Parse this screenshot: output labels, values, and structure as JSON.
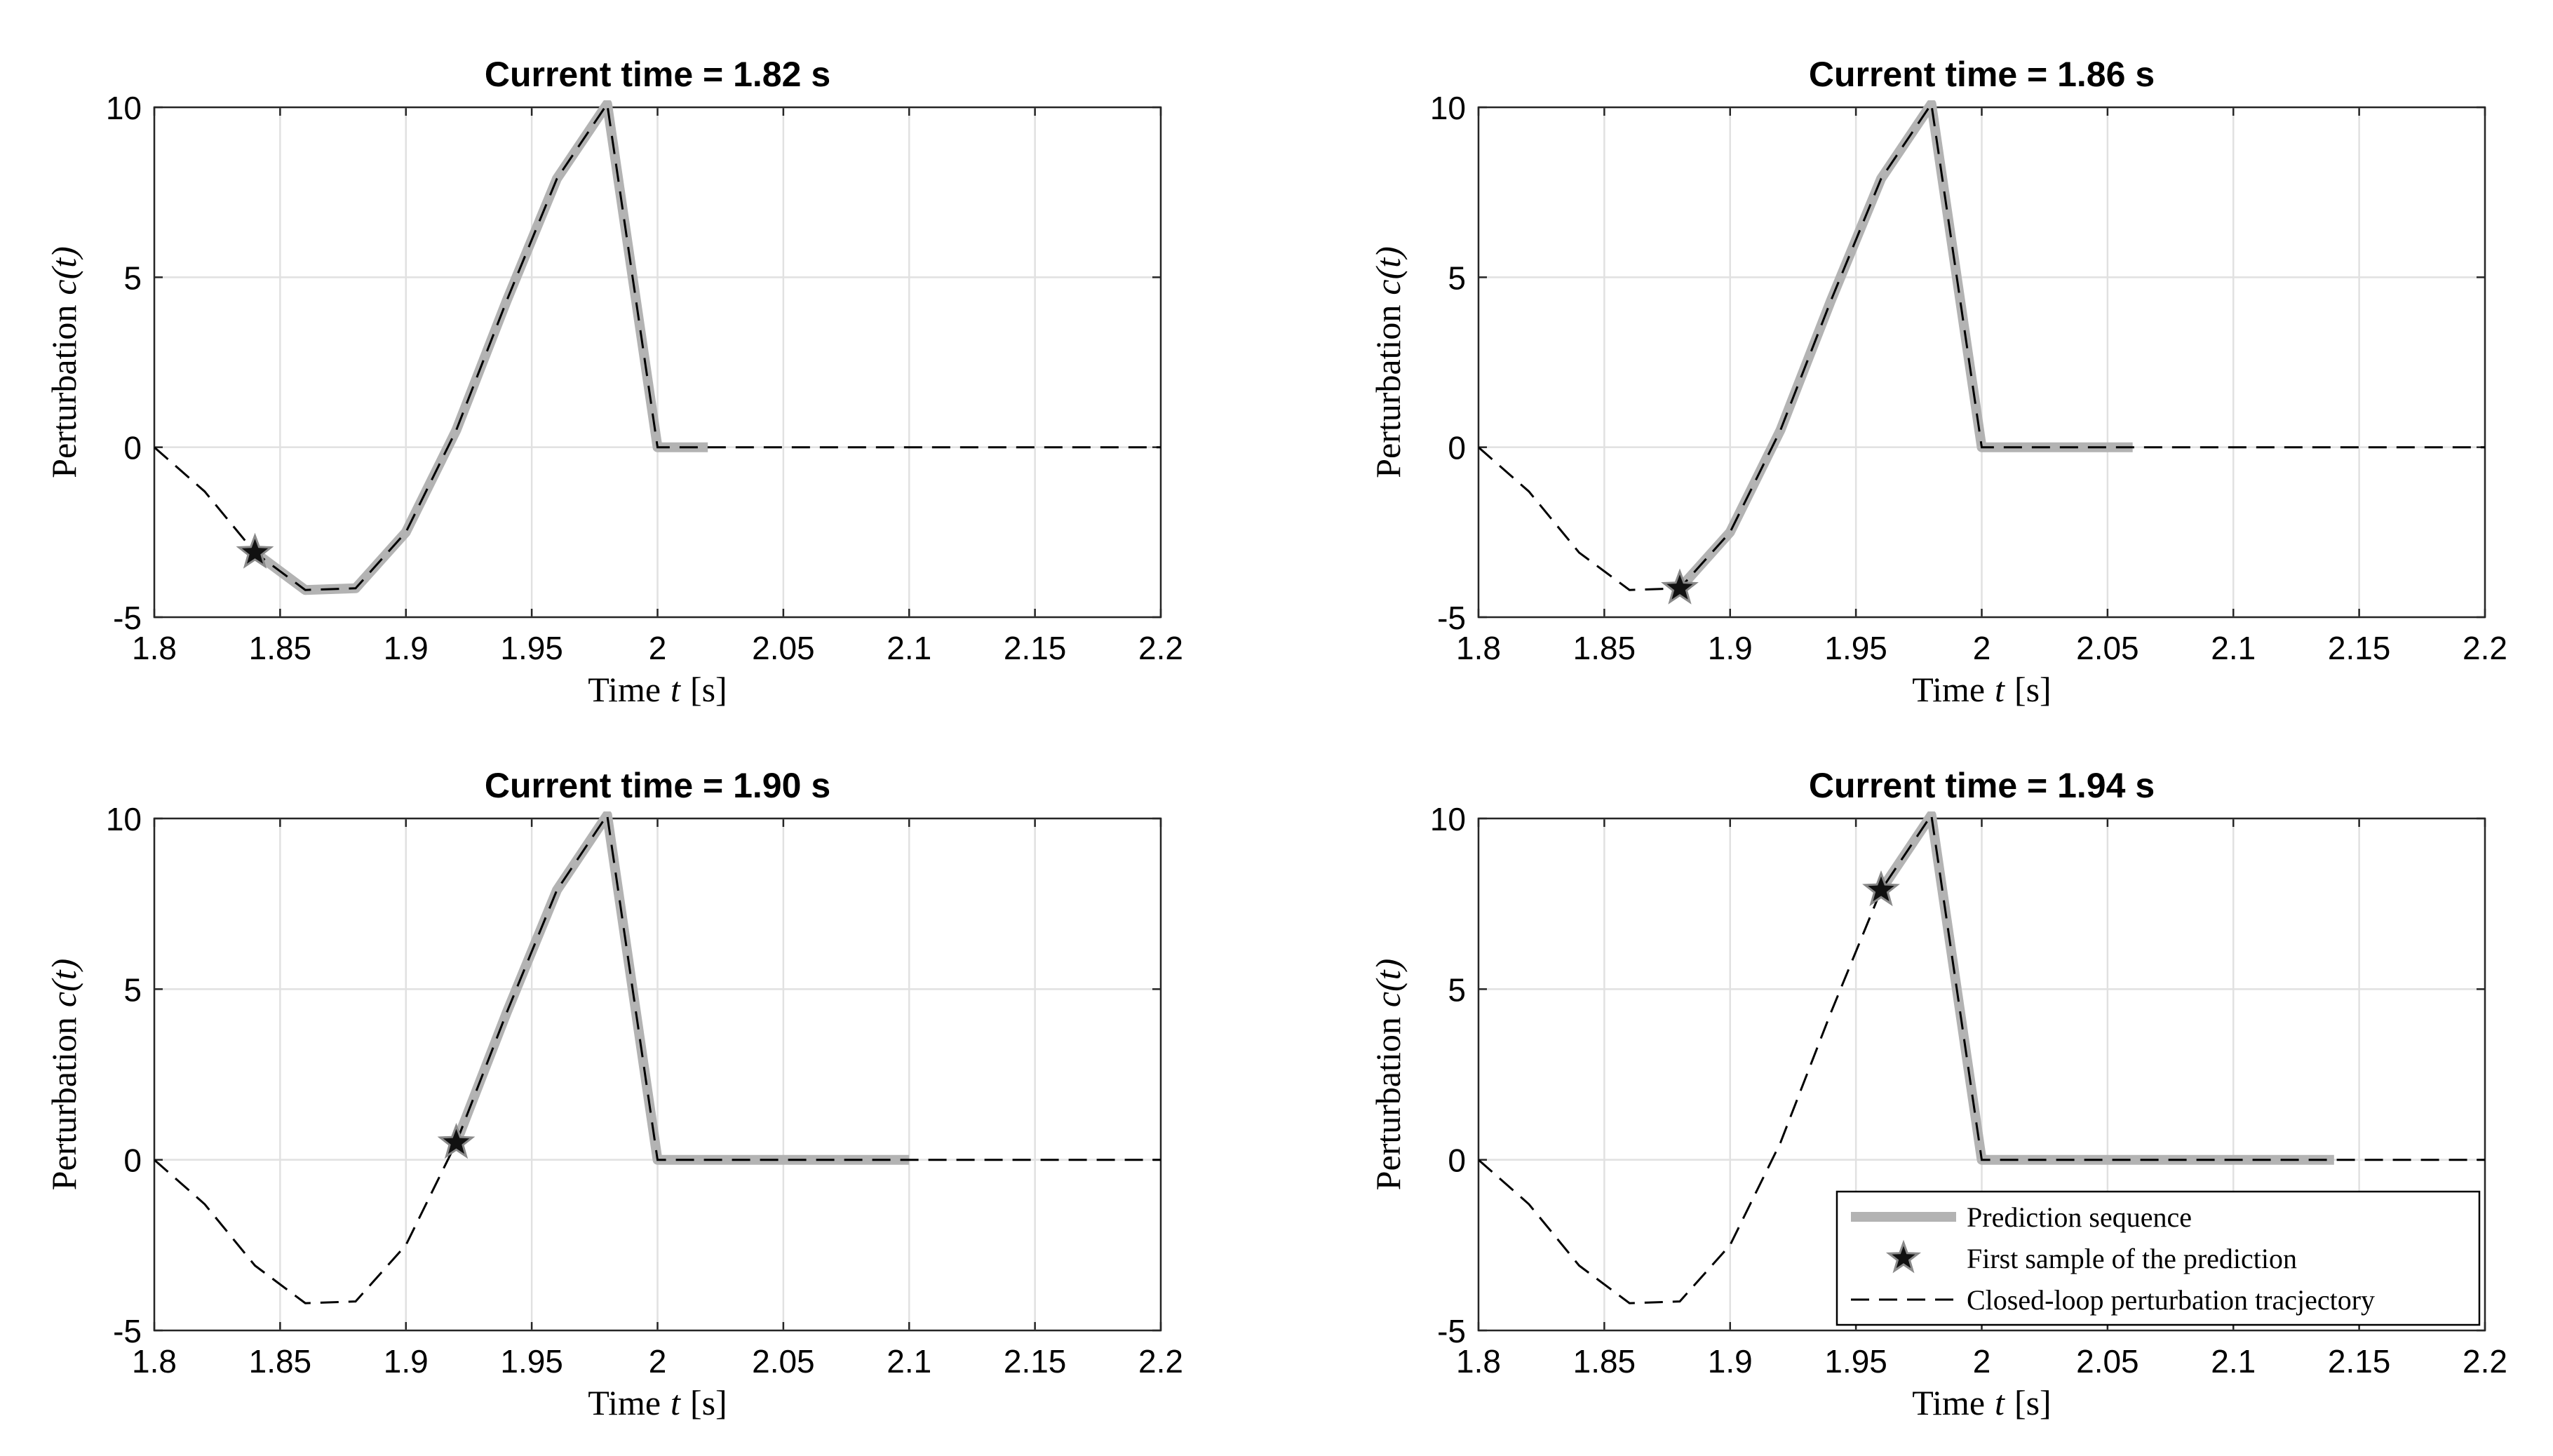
{
  "chart_data": [
    {
      "type": "line",
      "title": "Current time = 1.82 s",
      "xlabel": "Time",
      "xlabel_var": "t",
      "xlabel_unit": "[s]",
      "ylabel": "Perturbation",
      "ylabel_var": "c(t)",
      "xlim": [
        1.8,
        2.2
      ],
      "ylim": [
        -5,
        10
      ],
      "xticks": [
        "1.8",
        "1.85",
        "1.9",
        "1.95",
        "2",
        "2.05",
        "2.1",
        "2.15",
        "2.2"
      ],
      "yticks": [
        "-5",
        "0",
        "5",
        "10"
      ],
      "grid": true,
      "series": [
        {
          "name": "Prediction sequence",
          "x": [
            1.84,
            1.86,
            1.88,
            1.9,
            1.92,
            1.94,
            1.96,
            1.98,
            2.0,
            2.02
          ],
          "y": [
            -3.1,
            -4.2,
            -4.15,
            -2.5,
            0.5,
            4.3,
            7.9,
            10.1,
            0.0,
            0.0
          ]
        },
        {
          "name": "First sample of the prediction",
          "x": [
            1.84
          ],
          "y": [
            -3.1
          ]
        },
        {
          "name": "Closed-loop perturbation tracjectory",
          "x": [
            1.8,
            1.82,
            1.84,
            1.86,
            1.88,
            1.9,
            1.92,
            1.94,
            1.96,
            1.98,
            2.0,
            2.2
          ],
          "y": [
            0.0,
            -1.3,
            -3.1,
            -4.2,
            -4.15,
            -2.5,
            0.5,
            4.3,
            7.9,
            10.1,
            0.0,
            0.0
          ]
        }
      ]
    },
    {
      "type": "line",
      "title": "Current time = 1.86 s",
      "xlabel": "Time",
      "xlabel_var": "t",
      "xlabel_unit": "[s]",
      "ylabel": "Perturbation",
      "ylabel_var": "c(t)",
      "xlim": [
        1.8,
        2.2
      ],
      "ylim": [
        -5,
        10
      ],
      "xticks": [
        "1.8",
        "1.85",
        "1.9",
        "1.95",
        "2",
        "2.05",
        "2.1",
        "2.15",
        "2.2"
      ],
      "yticks": [
        "-5",
        "0",
        "5",
        "10"
      ],
      "grid": true,
      "series": [
        {
          "name": "Prediction sequence",
          "x": [
            1.88,
            1.9,
            1.92,
            1.94,
            1.96,
            1.98,
            2.0,
            2.02,
            2.04,
            2.06
          ],
          "y": [
            -4.15,
            -2.5,
            0.5,
            4.3,
            7.9,
            10.1,
            0.0,
            0.0,
            0.0,
            0.0
          ]
        },
        {
          "name": "First sample of the prediction",
          "x": [
            1.88
          ],
          "y": [
            -4.15
          ]
        },
        {
          "name": "Closed-loop perturbation tracjectory",
          "x": [
            1.8,
            1.82,
            1.84,
            1.86,
            1.88,
            1.9,
            1.92,
            1.94,
            1.96,
            1.98,
            2.0,
            2.2
          ],
          "y": [
            0.0,
            -1.3,
            -3.1,
            -4.2,
            -4.15,
            -2.5,
            0.5,
            4.3,
            7.9,
            10.1,
            0.0,
            0.0
          ]
        }
      ]
    },
    {
      "type": "line",
      "title": "Current time = 1.90 s",
      "xlabel": "Time",
      "xlabel_var": "t",
      "xlabel_unit": "[s]",
      "ylabel": "Perturbation",
      "ylabel_var": "c(t)",
      "xlim": [
        1.8,
        2.2
      ],
      "ylim": [
        -5,
        10
      ],
      "xticks": [
        "1.8",
        "1.85",
        "1.9",
        "1.95",
        "2",
        "2.05",
        "2.1",
        "2.15",
        "2.2"
      ],
      "yticks": [
        "-5",
        "0",
        "5",
        "10"
      ],
      "grid": true,
      "series": [
        {
          "name": "Prediction sequence",
          "x": [
            1.92,
            1.94,
            1.96,
            1.98,
            2.0,
            2.02,
            2.04,
            2.06,
            2.08,
            2.1
          ],
          "y": [
            0.5,
            4.3,
            7.9,
            10.1,
            0.0,
            0.0,
            0.0,
            0.0,
            0.0,
            0.0
          ]
        },
        {
          "name": "First sample of the prediction",
          "x": [
            1.92
          ],
          "y": [
            0.5
          ]
        },
        {
          "name": "Closed-loop perturbation tracjectory",
          "x": [
            1.8,
            1.82,
            1.84,
            1.86,
            1.88,
            1.9,
            1.92,
            1.94,
            1.96,
            1.98,
            2.0,
            2.2
          ],
          "y": [
            0.0,
            -1.3,
            -3.1,
            -4.2,
            -4.15,
            -2.5,
            0.5,
            4.3,
            7.9,
            10.1,
            0.0,
            0.0
          ]
        }
      ]
    },
    {
      "type": "line",
      "title": "Current time = 1.94 s",
      "xlabel": "Time",
      "xlabel_var": "t",
      "xlabel_unit": "[s]",
      "ylabel": "Perturbation",
      "ylabel_var": "c(t)",
      "xlim": [
        1.8,
        2.2
      ],
      "ylim": [
        -5,
        10
      ],
      "xticks": [
        "1.8",
        "1.85",
        "1.9",
        "1.95",
        "2",
        "2.05",
        "2.1",
        "2.15",
        "2.2"
      ],
      "yticks": [
        "-5",
        "0",
        "5",
        "10"
      ],
      "grid": true,
      "legend": {
        "placement": "bottom-right",
        "entries": [
          "Prediction sequence",
          "First sample of the prediction",
          "Closed-loop perturbation tracjectory"
        ]
      },
      "series": [
        {
          "name": "Prediction sequence",
          "x": [
            1.96,
            1.98,
            2.0,
            2.02,
            2.04,
            2.06,
            2.08,
            2.1,
            2.12,
            2.14
          ],
          "y": [
            7.9,
            10.1,
            0.0,
            0.0,
            0.0,
            0.0,
            0.0,
            0.0,
            0.0,
            0.0
          ]
        },
        {
          "name": "First sample of the prediction",
          "x": [
            1.96
          ],
          "y": [
            7.9
          ]
        },
        {
          "name": "Closed-loop perturbation tracjectory",
          "x": [
            1.8,
            1.82,
            1.84,
            1.86,
            1.88,
            1.9,
            1.92,
            1.94,
            1.96,
            1.98,
            2.0,
            2.2
          ],
          "y": [
            0.0,
            -1.3,
            -3.1,
            -4.2,
            -4.15,
            -2.5,
            0.5,
            4.3,
            7.9,
            10.1,
            0.0,
            0.0
          ]
        }
      ]
    }
  ],
  "colors": {
    "prediction": "#b3b3b3",
    "closed_loop": "#000000",
    "star_fill": "#111111",
    "grid": "#e1e1e1",
    "frame": "#262626"
  }
}
